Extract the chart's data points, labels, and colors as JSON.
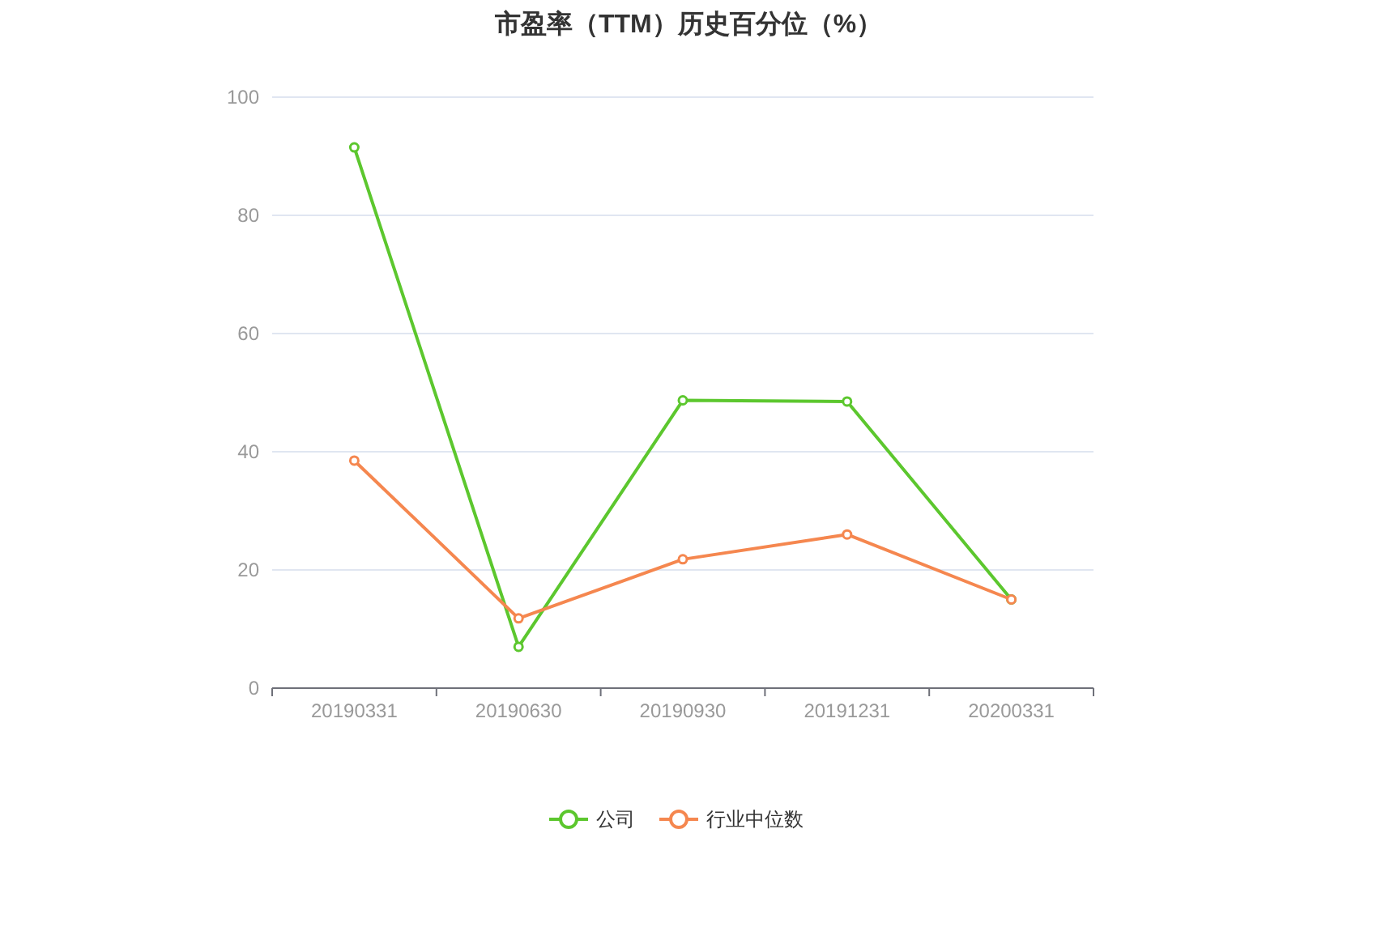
{
  "chart_data": {
    "type": "line",
    "title": "市盈率（TTM）历史百分位（%）",
    "categories": [
      "20190331",
      "20190630",
      "20190930",
      "20191231",
      "20200331"
    ],
    "series": [
      {
        "name": "公司",
        "color": "#5cc72e",
        "values": [
          91.5,
          7,
          48.7,
          48.5,
          15
        ]
      },
      {
        "name": "行业中位数",
        "color": "#f5874f",
        "values": [
          38.5,
          11.8,
          21.8,
          26,
          15
        ]
      }
    ],
    "ylim": [
      0,
      100
    ],
    "yticks": [
      0,
      20,
      40,
      60,
      80,
      100
    ],
    "grid": "y",
    "legend": "bottom",
    "marker": "circle",
    "line_style": "solid"
  }
}
